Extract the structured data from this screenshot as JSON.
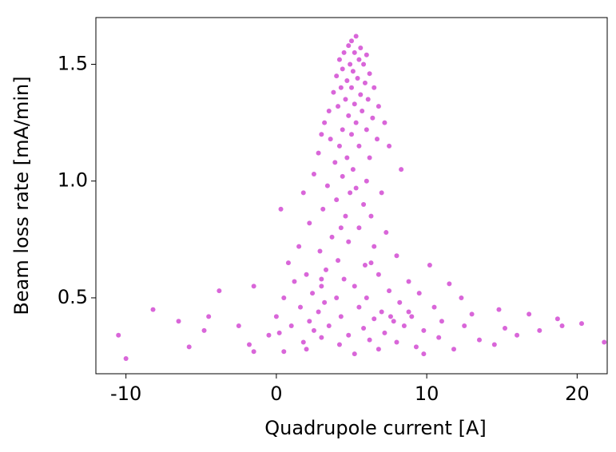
{
  "chart_data": {
    "type": "scatter",
    "x_label": "Quadrupole current [A]",
    "y_label": "Beam loss rate [mA/min]",
    "color": "#c000c0",
    "xlim": [
      -12,
      22
    ],
    "ylim": [
      0.175,
      1.7
    ],
    "xticks": [
      -10,
      0,
      10,
      20
    ],
    "yticks": [
      0.5,
      {
        "value": 1,
        "label": "1.0"
      },
      1.5
    ],
    "x": [
      5.0,
      5.3,
      4.8,
      5.6,
      4.5,
      5.2,
      6.0,
      4.2,
      5.5,
      4.9,
      5.8,
      4.4,
      5.1,
      6.2,
      4.0,
      5.4,
      4.7,
      5.9,
      4.3,
      5.0,
      6.5,
      3.8,
      5.6,
      4.6,
      6.1,
      5.2,
      4.1,
      6.8,
      3.5,
      5.7,
      4.8,
      6.4,
      3.2,
      5.3,
      7.2,
      4.4,
      6.0,
      3.0,
      5.0,
      6.7,
      3.6,
      4.2,
      5.5,
      7.5,
      2.8,
      4.7,
      6.2,
      3.9,
      5.1,
      8.3,
      2.5,
      4.4,
      6.0,
      3.4,
      5.3,
      4.9,
      7.0,
      1.8,
      4.0,
      5.8,
      3.1,
      4.6,
      6.3,
      0.3,
      2.2,
      4.3,
      5.5,
      7.3,
      3.7,
      4.8,
      1.5,
      6.5,
      2.9,
      8.0,
      4.1,
      0.8,
      5.9,
      3.3,
      10.2,
      2.0,
      6.8,
      4.5,
      1.2,
      8.8,
      5.2,
      3.0,
      11.5,
      7.5,
      -1.5,
      2.4,
      9.5,
      6.0,
      0.5,
      4.0,
      12.3,
      3.2,
      8.2,
      -3.8,
      1.6,
      5.5,
      10.5,
      14.8,
      7.0,
      2.8,
      -8.2,
      0.0,
      4.3,
      9.0,
      13.0,
      6.5,
      2.2,
      7.8,
      -4.5,
      11.0,
      16.8,
      3.5,
      8.5,
      1.0,
      5.8,
      -6.5,
      12.5,
      18.7,
      0.2,
      2.5,
      7.2,
      9.8,
      -2.5,
      15.2,
      4.8,
      -0.5,
      3.0,
      10.8,
      -4.8,
      20.3,
      -10.5,
      6.2,
      1.8,
      8.0,
      13.5,
      17.5,
      -1.8,
      4.2,
      9.3,
      -5.8,
      14.5,
      21.8,
      2.0,
      6.8,
      11.8,
      0.5,
      5.2,
      -1.5,
      -10.0,
      9.8,
      19.0,
      16.0,
      8.8,
      7.6,
      3.0,
      6.3
    ],
    "values": [
      1.6,
      1.62,
      1.58,
      1.57,
      1.55,
      1.55,
      1.54,
      1.52,
      1.52,
      1.5,
      1.5,
      1.48,
      1.47,
      1.46,
      1.45,
      1.44,
      1.43,
      1.42,
      1.4,
      1.4,
      1.4,
      1.38,
      1.37,
      1.35,
      1.35,
      1.33,
      1.32,
      1.32,
      1.3,
      1.3,
      1.28,
      1.27,
      1.25,
      1.25,
      1.25,
      1.22,
      1.22,
      1.2,
      1.2,
      1.18,
      1.18,
      1.15,
      1.15,
      1.15,
      1.12,
      1.1,
      1.1,
      1.08,
      1.05,
      1.05,
      1.03,
      1.02,
      1.0,
      0.98,
      0.97,
      0.95,
      0.95,
      0.95,
      0.92,
      0.9,
      0.88,
      0.85,
      0.85,
      0.88,
      0.82,
      0.8,
      0.8,
      0.78,
      0.76,
      0.74,
      0.72,
      0.72,
      0.7,
      0.68,
      0.66,
      0.65,
      0.64,
      0.62,
      0.64,
      0.6,
      0.6,
      0.58,
      0.57,
      0.57,
      0.55,
      0.55,
      0.56,
      0.53,
      0.55,
      0.52,
      0.52,
      0.5,
      0.5,
      0.5,
      0.5,
      0.48,
      0.48,
      0.53,
      0.46,
      0.46,
      0.46,
      0.45,
      0.44,
      0.44,
      0.45,
      0.42,
      0.42,
      0.42,
      0.43,
      0.41,
      0.4,
      0.4,
      0.42,
      0.4,
      0.43,
      0.38,
      0.38,
      0.38,
      0.37,
      0.4,
      0.38,
      0.41,
      0.35,
      0.36,
      0.35,
      0.36,
      0.38,
      0.37,
      0.34,
      0.34,
      0.33,
      0.33,
      0.36,
      0.39,
      0.34,
      0.32,
      0.31,
      0.31,
      0.32,
      0.36,
      0.3,
      0.3,
      0.29,
      0.29,
      0.3,
      0.31,
      0.28,
      0.28,
      0.28,
      0.27,
      0.26,
      0.27,
      0.24,
      0.26,
      0.38,
      0.34,
      0.44,
      0.42,
      0.58,
      0.65
    ]
  }
}
